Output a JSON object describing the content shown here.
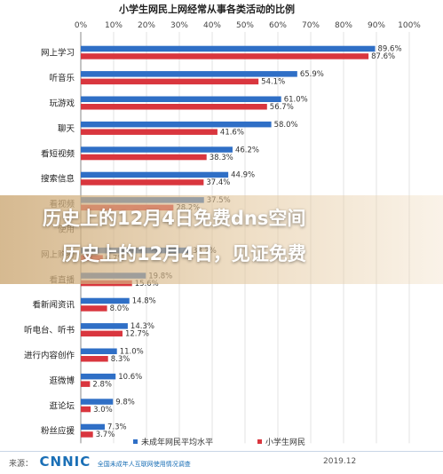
{
  "chart_data": {
    "type": "bar",
    "orientation": "horizontal",
    "title": "小学生网民上网经常从事各类活动的比例",
    "x_ticks": [
      "0%",
      "10%",
      "20%",
      "30%",
      "40%",
      "50%",
      "60%",
      "70%",
      "80%",
      "90%",
      "100%"
    ],
    "xlim": [
      0,
      100
    ],
    "grid": true,
    "legend_placement": "bottom",
    "categories": [
      "网上学习",
      "听音乐",
      "玩游戏",
      "聊天",
      "看短视频",
      "搜索信息",
      "看视频",
      "使用",
      "网上购物",
      "看直播",
      "看新闻资讯",
      "听电台、听书",
      "进行内容创作",
      "逛微博",
      "逛论坛",
      "粉丝应援"
    ],
    "series": [
      {
        "name": "未成年网民平均水平",
        "color": "#2f6fc6",
        "values": [
          89.6,
          65.9,
          61.0,
          58.0,
          46.2,
          44.9,
          37.5,
          null,
          33.2,
          19.8,
          14.8,
          14.3,
          11.0,
          10.6,
          9.8,
          7.3
        ],
        "labels": [
          "89.6%",
          "65.9%",
          "61.0%",
          "58.0%",
          "46.2%",
          "44.9%",
          "37.5%",
          "",
          "33.2%",
          "19.8%",
          "14.8%",
          "14.3%",
          "11.0%",
          "10.6%",
          "9.8%",
          "7.3%"
        ]
      },
      {
        "name": "小学生网民",
        "color": "#d9363e",
        "values": [
          87.6,
          54.1,
          56.7,
          41.6,
          38.3,
          37.4,
          28.2,
          null,
          6.7,
          15.6,
          8.0,
          12.7,
          8.3,
          2.8,
          3.0,
          3.7
        ],
        "labels": [
          "87.6%",
          "54.1%",
          "56.7%",
          "41.6%",
          "38.3%",
          "37.4%",
          "28.2%",
          "",
          "6.7%",
          "15.6%",
          "8.0%",
          "12.7%",
          "8.3%",
          "2.8%",
          "3.0%",
          "3.7%"
        ]
      }
    ]
  },
  "overlay": {
    "line1": "历史上的12月4日免费dns空间",
    "line2": "历史上的12月4日，见证免费"
  },
  "footer": {
    "source_label": "来源：",
    "logo": "CNNIC",
    "source_name": "全国未成年人互联网使用情况调查",
    "date": "2019.12"
  }
}
